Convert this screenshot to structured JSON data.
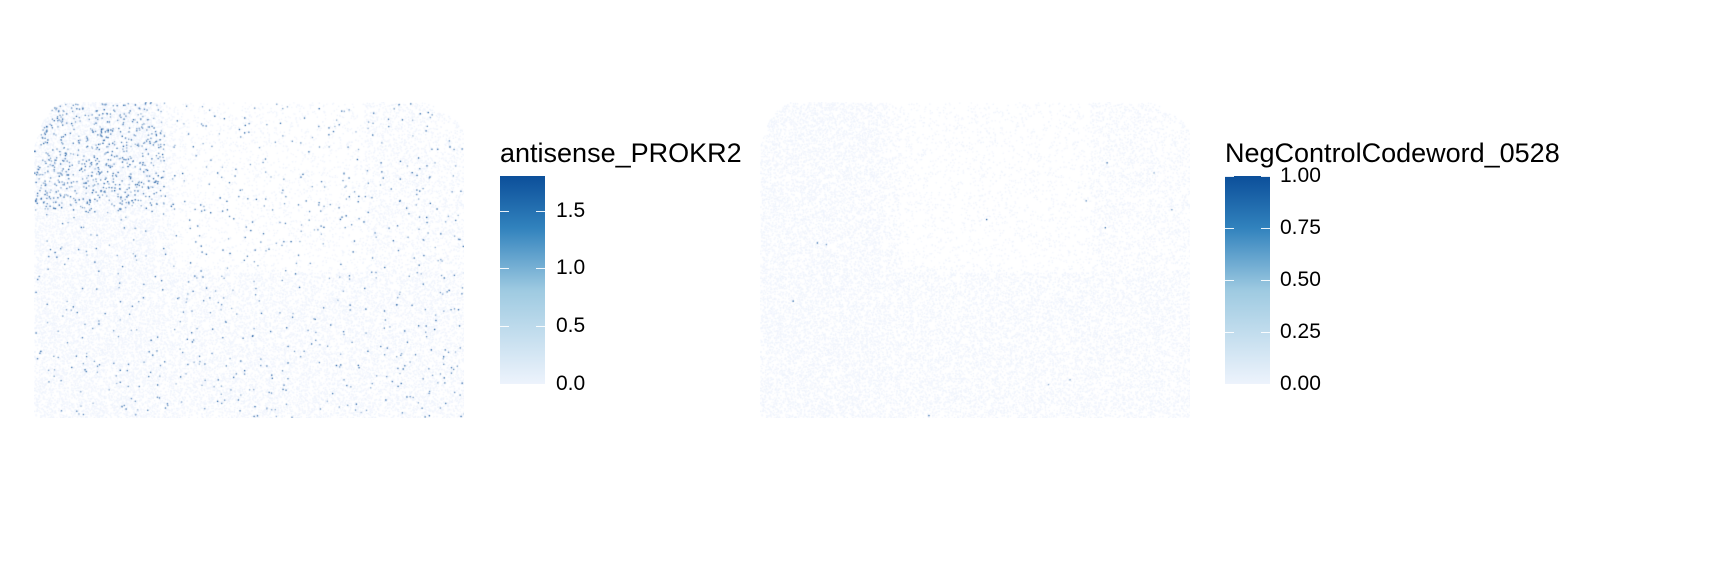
{
  "chart_data": [
    {
      "type": "heatmap",
      "plot_kind": "spatial expression scatter",
      "legend_title": "antisense_PROKR2",
      "color_scale": {
        "low": "#edf3fc",
        "high": "#0c4f9a"
      },
      "value_range": [
        0,
        1.8
      ],
      "legend_ticks": [
        {
          "value": 0.0,
          "label": "0.0"
        },
        {
          "value": 0.5,
          "label": "0.5"
        },
        {
          "value": 1.0,
          "label": "1.0"
        },
        {
          "value": 1.5,
          "label": "1.5"
        }
      ],
      "hotspot": "top-left",
      "point_density": "sparse high-expression points scattered, dense at top-left"
    },
    {
      "type": "heatmap",
      "plot_kind": "spatial expression scatter",
      "legend_title": "NegControlCodeword_0528",
      "color_scale": {
        "low": "#edf3fc",
        "high": "#0c4f9a"
      },
      "value_range": [
        0,
        1.0
      ],
      "legend_ticks": [
        {
          "value": 0.0,
          "label": "0.00"
        },
        {
          "value": 0.25,
          "label": "0.25"
        },
        {
          "value": 0.5,
          "label": "0.50"
        },
        {
          "value": 0.75,
          "label": "0.75"
        },
        {
          "value": 1.0,
          "label": "1.00"
        }
      ],
      "hotspot": "none",
      "point_density": "almost all points near zero"
    }
  ]
}
